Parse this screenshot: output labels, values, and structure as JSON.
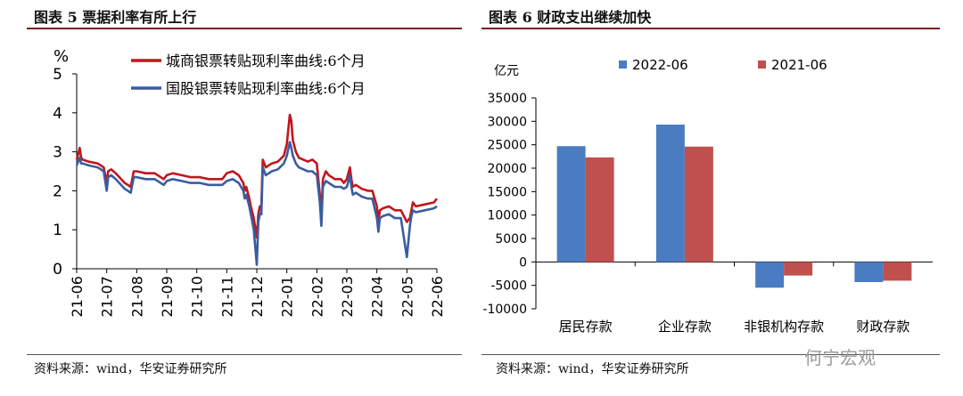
{
  "panels": [
    {
      "title": "图表 5  票据利率有所上行",
      "source": "资料来源：wind，华安证券研究所"
    },
    {
      "title": "图表 6  财政支出继续加快",
      "source": "资料来源：wind，华安证券研究所"
    }
  ],
  "watermark": "何宁宏观",
  "chart_data": [
    {
      "type": "line",
      "ylabel": "%",
      "ylim": [
        0,
        5
      ],
      "yticks": [
        0,
        1,
        2,
        3,
        4,
        5
      ],
      "xticks": [
        "21-06",
        "21-07",
        "21-08",
        "21-09",
        "21-10",
        "21-11",
        "21-12",
        "22-01",
        "22-02",
        "22-03",
        "22-04",
        "22-05",
        "22-06"
      ],
      "series": [
        {
          "name": "城商银票转贴现利率曲线:6个月",
          "color": "#c0161f",
          "x": [
            0,
            0.1,
            0.15,
            0.2,
            0.4,
            0.7,
            0.9,
            1.0,
            1.05,
            1.15,
            1.3,
            1.6,
            1.8,
            1.9,
            2.0,
            2.3,
            2.6,
            2.9,
            3.0,
            3.2,
            3.5,
            3.8,
            4.1,
            4.4,
            4.5,
            4.7,
            4.85,
            5.0,
            5.2,
            5.4,
            5.55,
            5.6,
            5.65,
            5.75,
            5.8,
            5.9,
            6.0,
            6.05,
            6.1,
            6.15,
            6.2,
            6.3,
            6.5,
            6.7,
            6.9,
            7.0,
            7.1,
            7.15,
            7.2,
            7.3,
            7.4,
            7.55,
            7.7,
            7.85,
            8.0,
            8.1,
            8.15,
            8.2,
            8.3,
            8.4,
            8.6,
            8.8,
            8.9,
            9.0,
            9.1,
            9.15,
            9.2,
            9.3,
            9.5,
            9.7,
            9.85,
            10.0,
            10.05,
            10.1,
            10.2,
            10.4,
            10.6,
            10.8,
            11.0,
            11.1,
            11.15,
            11.2,
            11.3,
            11.6,
            11.9,
            12.0
          ],
          "y": [
            2.8,
            3.1,
            2.85,
            2.8,
            2.75,
            2.7,
            2.6,
            2.2,
            2.5,
            2.55,
            2.45,
            2.2,
            2.1,
            2.5,
            2.5,
            2.45,
            2.45,
            2.3,
            2.4,
            2.45,
            2.4,
            2.35,
            2.35,
            2.3,
            2.3,
            2.3,
            2.3,
            2.45,
            2.5,
            2.4,
            2.2,
            2.0,
            2.1,
            1.8,
            1.6,
            1.3,
            0.8,
            1.4,
            1.6,
            1.6,
            2.8,
            2.6,
            2.7,
            2.75,
            2.9,
            3.2,
            3.95,
            3.8,
            3.3,
            3.0,
            2.85,
            2.8,
            2.75,
            2.8,
            2.7,
            1.9,
            1.3,
            2.3,
            2.5,
            2.4,
            2.3,
            2.3,
            2.2,
            2.3,
            2.6,
            2.3,
            2.1,
            2.15,
            2.05,
            2.0,
            2.0,
            1.6,
            1.2,
            1.5,
            1.55,
            1.6,
            1.5,
            1.5,
            1.2,
            1.3,
            1.5,
            1.7,
            1.6,
            1.65,
            1.7,
            1.8
          ]
        },
        {
          "name": "国股银票转贴现利率曲线:6个月",
          "color": "#3a5ca0",
          "x": [
            0,
            0.1,
            0.15,
            0.2,
            0.4,
            0.7,
            0.9,
            1.0,
            1.05,
            1.15,
            1.3,
            1.6,
            1.8,
            1.9,
            2.0,
            2.3,
            2.6,
            2.9,
            3.0,
            3.2,
            3.5,
            3.8,
            4.1,
            4.4,
            4.5,
            4.7,
            4.85,
            5.0,
            5.2,
            5.4,
            5.55,
            5.6,
            5.65,
            5.75,
            5.8,
            5.9,
            6.0,
            6.05,
            6.1,
            6.15,
            6.2,
            6.3,
            6.5,
            6.7,
            6.9,
            7.0,
            7.1,
            7.15,
            7.2,
            7.3,
            7.4,
            7.55,
            7.7,
            7.85,
            8.0,
            8.1,
            8.15,
            8.2,
            8.3,
            8.4,
            8.6,
            8.8,
            8.9,
            9.0,
            9.1,
            9.15,
            9.2,
            9.3,
            9.5,
            9.7,
            9.85,
            10.0,
            10.05,
            10.1,
            10.2,
            10.4,
            10.6,
            10.8,
            11.0,
            11.1,
            11.15,
            11.2,
            11.3,
            11.6,
            11.9,
            12.0
          ],
          "y": [
            2.65,
            2.85,
            2.7,
            2.7,
            2.65,
            2.6,
            2.5,
            2.0,
            2.35,
            2.4,
            2.3,
            2.05,
            1.95,
            2.35,
            2.35,
            2.3,
            2.3,
            2.15,
            2.25,
            2.3,
            2.25,
            2.2,
            2.2,
            2.15,
            2.15,
            2.15,
            2.15,
            2.25,
            2.3,
            2.2,
            2.0,
            1.8,
            1.9,
            1.6,
            1.4,
            1.0,
            0.1,
            1.2,
            1.4,
            1.4,
            2.6,
            2.4,
            2.5,
            2.55,
            2.7,
            2.9,
            3.25,
            3.1,
            2.9,
            2.7,
            2.6,
            2.55,
            2.5,
            2.5,
            2.4,
            1.7,
            1.1,
            2.1,
            2.25,
            2.2,
            2.1,
            2.1,
            2.05,
            2.1,
            2.4,
            2.1,
            1.9,
            1.95,
            1.85,
            1.8,
            1.8,
            1.3,
            0.95,
            1.3,
            1.35,
            1.4,
            1.3,
            1.3,
            0.3,
            1.1,
            1.35,
            1.5,
            1.45,
            1.5,
            1.55,
            1.6
          ]
        }
      ]
    },
    {
      "type": "bar",
      "ylabel": "亿元",
      "ylim": [
        -10000,
        35000
      ],
      "yticks": [
        35000,
        30000,
        25000,
        20000,
        15000,
        10000,
        5000,
        0,
        -5000,
        -10000
      ],
      "categories": [
        "居民存款",
        "企业存款",
        "非银机构存款",
        "财政存款"
      ],
      "series": [
        {
          "name": "2022-06",
          "color": "#4a7cc2",
          "values": [
            24700,
            29300,
            -5500,
            -4300
          ]
        },
        {
          "name": "2021-06",
          "color": "#c0504d",
          "values": [
            22300,
            24600,
            -2900,
            -4000
          ]
        }
      ]
    }
  ]
}
